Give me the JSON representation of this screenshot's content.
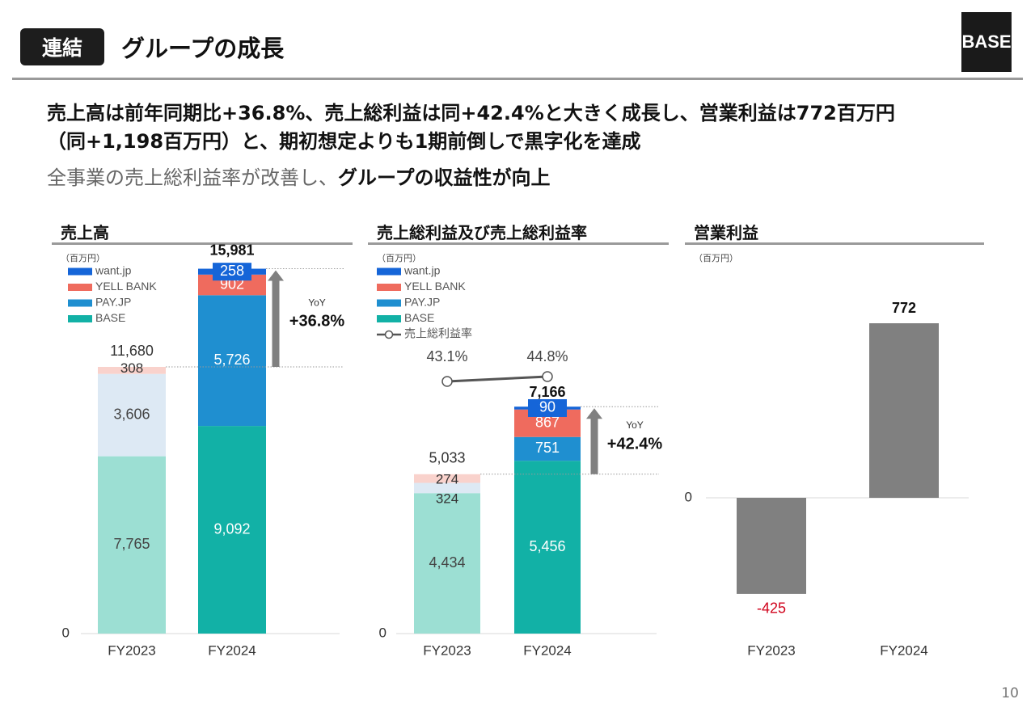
{
  "header": {
    "badge": "連結",
    "title": "グループの成長",
    "logo": "BASE"
  },
  "headline": {
    "line1": "売上高は前年同期比+36.8%、売上総利益は同+42.4%と大きく成長し、営業利益は772百万円",
    "line2": "（同+1,198百万円）と、期初想定よりも1期前倒しで黒字化を達成",
    "line3_gray": "全事業の売上総利益率が改善し、",
    "line3_bold": "グループの収益性が向上"
  },
  "page_number": "10",
  "colors": {
    "want_jp": "#1565d8",
    "yell_bank": "#ef6b5e",
    "pay_jp": "#1f8fd0",
    "base": "#12b1a6",
    "base_light": "#9cdfd3",
    "pay_light": "#dde9f4",
    "yell_light": "#f9d2cc",
    "op_bar": "#808080",
    "negative": "#d0021b"
  },
  "chart_data": [
    {
      "type": "bar",
      "title": "売上高",
      "unit": "（百万円）",
      "categories": [
        "FY2023",
        "FY2024"
      ],
      "series": [
        {
          "name": "BASE",
          "values": [
            7765,
            9092
          ]
        },
        {
          "name": "PAY.JP",
          "values": [
            3606,
            5726
          ]
        },
        {
          "name": "YELL BANK",
          "values": [
            308,
            902
          ]
        },
        {
          "name": "want.jp",
          "values": [
            0,
            258
          ]
        }
      ],
      "totals": [
        "11,680",
        "15,981"
      ],
      "segment_labels": [
        [
          "7,765",
          "3,606",
          "308",
          ""
        ],
        [
          "9,092",
          "5,726",
          "902",
          "258"
        ]
      ],
      "zero_label": "0",
      "yoy_label": "YoY",
      "yoy_value": "+36.8%",
      "ylim": [
        0,
        17200
      ],
      "legend_position": "top-left"
    },
    {
      "type": "bar",
      "title": "売上総利益及び売上総利益率",
      "unit": "（百万円）",
      "categories": [
        "FY2023",
        "FY2024"
      ],
      "series": [
        {
          "name": "BASE",
          "values": [
            4434,
            5456
          ]
        },
        {
          "name": "PAY.JP",
          "values": [
            324,
            751
          ]
        },
        {
          "name": "YELL BANK",
          "values": [
            274,
            867
          ]
        },
        {
          "name": "want.jp",
          "values": [
            0,
            90
          ]
        }
      ],
      "totals": [
        "5,033",
        "7,166"
      ],
      "segment_labels": [
        [
          "4,434",
          "324",
          "274",
          ""
        ],
        [
          "5,456",
          "751",
          "867",
          "90"
        ]
      ],
      "line_series": {
        "name": "売上総利益率",
        "values": [
          43.1,
          44.8
        ],
        "labels": [
          "43.1%",
          "44.8%"
        ]
      },
      "zero_label": "0",
      "yoy_label": "YoY",
      "yoy_value": "+42.4%",
      "ylim": [
        0,
        12400
      ],
      "legend_position": "top-left"
    },
    {
      "type": "bar",
      "title": "営業利益",
      "unit": "（百万円）",
      "categories": [
        "FY2023",
        "FY2024"
      ],
      "values": [
        -425,
        772
      ],
      "value_labels": [
        "-425",
        "772"
      ],
      "zero_label": "0",
      "ylim": [
        -560,
        1150
      ]
    }
  ]
}
